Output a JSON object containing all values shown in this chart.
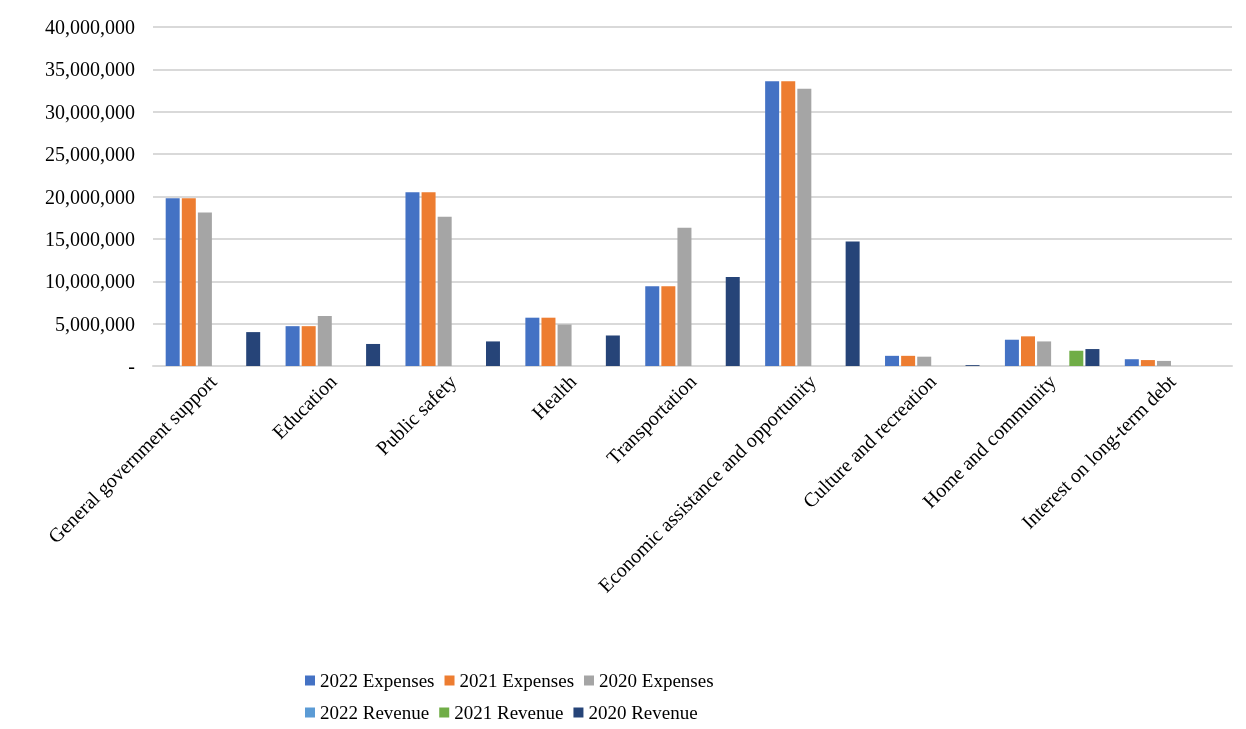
{
  "chart_data": {
    "type": "bar",
    "categories": [
      "General government support",
      "Education",
      "Public safety",
      "Health",
      "Transportation",
      "Economic assistance and opportunity",
      "Culture and recreation",
      "Home and community",
      "Interest on long-term debt"
    ],
    "series": [
      {
        "name": "2022 Expenses",
        "color": "#4472c4",
        "values": [
          19800000,
          4700000,
          20500000,
          5700000,
          9400000,
          33600000,
          1200000,
          3100000,
          800000
        ]
      },
      {
        "name": "2021 Expenses",
        "color": "#ed7d31",
        "values": [
          19800000,
          4700000,
          20500000,
          5700000,
          9400000,
          33600000,
          1200000,
          3500000,
          700000
        ]
      },
      {
        "name": "2020 Expenses",
        "color": "#a5a5a5",
        "values": [
          18100000,
          5900000,
          17600000,
          4900000,
          16300000,
          32700000,
          1100000,
          2900000,
          600000
        ]
      },
      {
        "name": "2022 Revenue",
        "color": "#5b9bd5",
        "values": [
          null,
          null,
          null,
          null,
          null,
          null,
          null,
          null,
          null
        ]
      },
      {
        "name": "2021 Revenue",
        "color": "#70ad47",
        "values": [
          null,
          null,
          null,
          null,
          null,
          null,
          null,
          1800000,
          null
        ]
      },
      {
        "name": "2020 Revenue",
        "color": "#264478",
        "values": [
          4000000,
          2600000,
          2900000,
          3600000,
          10500000,
          14700000,
          100000,
          2000000,
          null
        ]
      }
    ],
    "ylim": [
      0,
      40000000
    ],
    "yticks": [
      {
        "value": 0,
        "label": "-"
      },
      {
        "value": 5000000,
        "label": "5,000,000"
      },
      {
        "value": 10000000,
        "label": "10,000,000"
      },
      {
        "value": 15000000,
        "label": "15,000,000"
      },
      {
        "value": 20000000,
        "label": "20,000,000"
      },
      {
        "value": 25000000,
        "label": "25,000,000"
      },
      {
        "value": 30000000,
        "label": "30,000,000"
      },
      {
        "value": 35000000,
        "label": "35,000,000"
      },
      {
        "value": 40000000,
        "label": "40,000,000"
      }
    ],
    "grid": "y",
    "legend": "bottom"
  }
}
